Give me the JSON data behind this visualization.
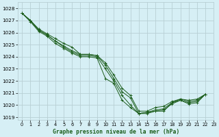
{
  "title": "Graphe pression niveau de la mer (hPa)",
  "bg_color": "#d6eff5",
  "grid_color": "#b8cfd4",
  "line_color": "#1a5c1a",
  "xlim": [
    -0.5,
    23
  ],
  "ylim": [
    1018.8,
    1028.5
  ],
  "yticks": [
    1019,
    1020,
    1021,
    1022,
    1023,
    1024,
    1025,
    1026,
    1027,
    1028
  ],
  "xticks": [
    0,
    1,
    2,
    3,
    4,
    5,
    6,
    7,
    8,
    9,
    10,
    11,
    12,
    13,
    14,
    15,
    16,
    17,
    18,
    19,
    20,
    21,
    22,
    23
  ],
  "series": [
    [
      1027.6,
      1027.0,
      1026.3,
      1025.9,
      1025.5,
      1025.1,
      1024.8,
      1024.2,
      1024.2,
      1024.1,
      1023.3,
      1022.2,
      1021.1,
      1020.6,
      1019.3,
      1019.4,
      1019.6,
      1019.7,
      1020.2,
      1020.5,
      1020.3,
      1020.4,
      1020.9
    ],
    [
      1027.6,
      1027.0,
      1026.2,
      1025.8,
      1025.3,
      1024.9,
      1024.5,
      1024.2,
      1024.2,
      1024.1,
      1023.5,
      1022.5,
      1021.4,
      1020.8,
      1019.5,
      1019.5,
      1019.8,
      1019.9,
      1020.3,
      1020.5,
      1020.4,
      1020.5,
      1020.9
    ],
    [
      1027.6,
      1027.0,
      1026.2,
      1025.8,
      1025.3,
      1024.8,
      1024.4,
      1024.1,
      1024.1,
      1024.0,
      1023.0,
      1022.0,
      1020.8,
      1020.0,
      1019.3,
      1019.4,
      1019.5,
      1019.6,
      1020.1,
      1020.4,
      1020.2,
      1020.3,
      1020.9
    ],
    [
      1027.6,
      1026.9,
      1026.1,
      1025.7,
      1025.1,
      1024.7,
      1024.3,
      1024.0,
      1024.0,
      1023.9,
      1022.2,
      1021.8,
      1020.4,
      1019.8,
      1019.3,
      1019.3,
      1019.5,
      1019.5,
      1020.2,
      1020.4,
      1020.1,
      1020.2,
      1020.9
    ]
  ]
}
